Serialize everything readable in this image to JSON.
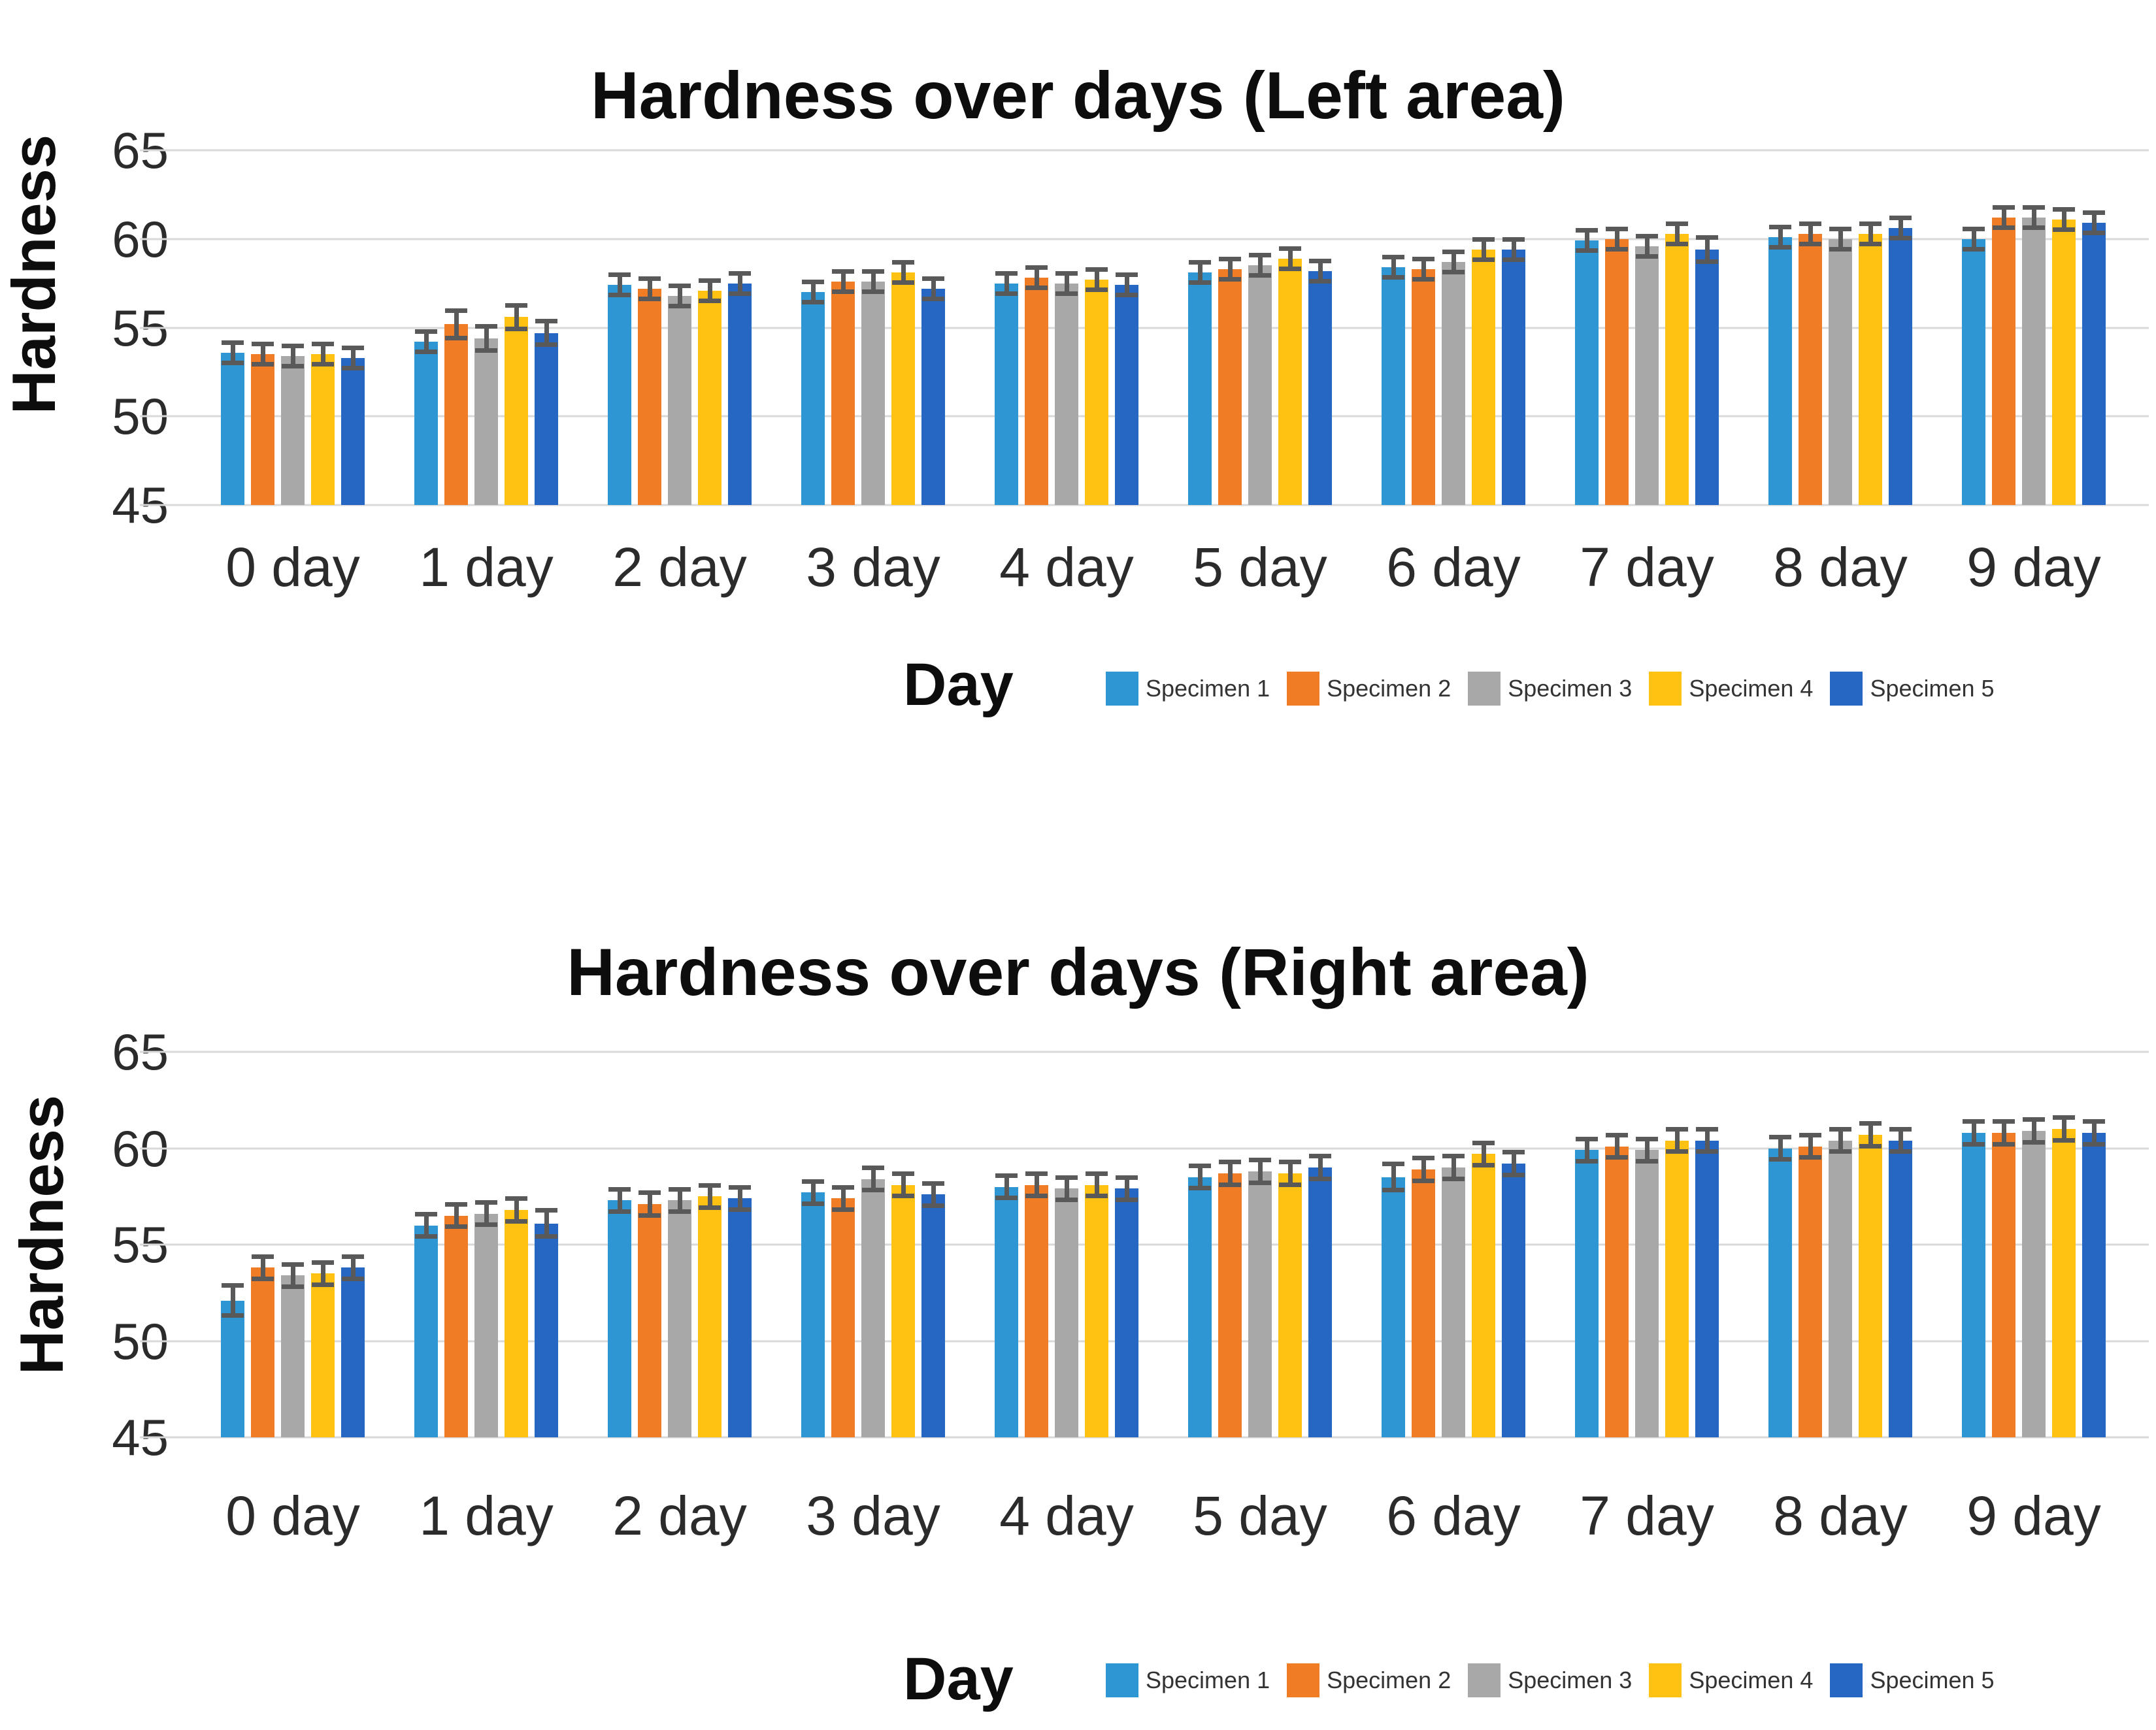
{
  "page": {
    "background": "#ffffff"
  },
  "colors": {
    "error_bar": "#595959",
    "gridline": "#D9D9D9",
    "title_text": "#0d0d0d",
    "axis_text": "#2b2b2b"
  },
  "chart_data": [
    {
      "type": "bar",
      "title": "Hardness over days (Left area)",
      "xlabel": "Day",
      "ylabel": "Hardness",
      "ylim": [
        45,
        65
      ],
      "yticks": [
        65,
        60,
        55,
        50,
        45
      ],
      "grid": true,
      "legend_position": "bottom-right",
      "error_bars": true,
      "categories": [
        "0 day",
        "1 day",
        "2 day",
        "3 day",
        "4 day",
        "5 day",
        "6 day",
        "7 day",
        "8 day",
        "9 day"
      ],
      "series": [
        {
          "name": "Specimen 1",
          "color": "#2E96D3",
          "values": [
            53.6,
            54.2,
            57.4,
            57.0,
            57.5,
            58.1,
            58.4,
            59.9,
            60.1,
            60.0
          ],
          "errors": [
            0.7,
            0.7,
            0.7,
            0.7,
            0.7,
            0.7,
            0.7,
            0.7,
            0.7,
            0.7
          ]
        },
        {
          "name": "Specimen 2",
          "color": "#F07D26",
          "values": [
            53.5,
            55.2,
            57.2,
            57.6,
            57.8,
            58.3,
            58.3,
            60.0,
            60.3,
            61.2
          ],
          "errors": [
            0.7,
            0.9,
            0.7,
            0.7,
            0.7,
            0.7,
            0.7,
            0.7,
            0.7,
            0.7
          ]
        },
        {
          "name": "Specimen 3",
          "color": "#A8A8A8",
          "values": [
            53.4,
            54.4,
            56.8,
            57.6,
            57.5,
            58.5,
            58.7,
            59.6,
            60.0,
            61.2
          ],
          "errors": [
            0.7,
            0.8,
            0.7,
            0.7,
            0.7,
            0.7,
            0.7,
            0.7,
            0.7,
            0.7
          ]
        },
        {
          "name": "Specimen 4",
          "color": "#FFC213",
          "values": [
            53.5,
            55.6,
            57.1,
            58.1,
            57.7,
            58.9,
            59.4,
            60.3,
            60.3,
            61.1
          ],
          "errors": [
            0.7,
            0.8,
            0.7,
            0.7,
            0.7,
            0.7,
            0.7,
            0.7,
            0.7,
            0.7
          ]
        },
        {
          "name": "Specimen 5",
          "color": "#2767C4",
          "values": [
            53.3,
            54.7,
            57.5,
            57.2,
            57.4,
            58.2,
            59.4,
            59.4,
            60.6,
            60.9
          ],
          "errors": [
            0.7,
            0.8,
            0.7,
            0.7,
            0.7,
            0.7,
            0.7,
            0.8,
            0.7,
            0.7
          ]
        }
      ]
    },
    {
      "type": "bar",
      "title": "Hardness over days (Right area)",
      "xlabel": "Day",
      "ylabel": "Hardness",
      "ylim": [
        45,
        65
      ],
      "yticks": [
        65,
        60,
        55,
        50,
        45
      ],
      "grid": true,
      "legend_position": "bottom-right",
      "error_bars": true,
      "categories": [
        "0 day",
        "1 day",
        "2 day",
        "3 day",
        "4 day",
        "5 day",
        "6 day",
        "7 day",
        "8 day",
        "9 day"
      ],
      "series": [
        {
          "name": "Specimen 1",
          "color": "#2E96D3",
          "values": [
            52.1,
            56.0,
            57.3,
            57.7,
            58.0,
            58.5,
            58.5,
            59.9,
            60.0,
            60.8
          ],
          "errors": [
            0.9,
            0.7,
            0.7,
            0.7,
            0.7,
            0.7,
            0.8,
            0.7,
            0.7,
            0.7
          ]
        },
        {
          "name": "Specimen 2",
          "color": "#F07D26",
          "values": [
            53.8,
            56.5,
            57.1,
            57.4,
            58.1,
            58.7,
            58.9,
            60.1,
            60.1,
            60.8
          ],
          "errors": [
            0.7,
            0.7,
            0.7,
            0.7,
            0.7,
            0.7,
            0.7,
            0.7,
            0.7,
            0.7
          ]
        },
        {
          "name": "Specimen 3",
          "color": "#A8A8A8",
          "values": [
            53.4,
            56.6,
            57.3,
            58.4,
            57.9,
            58.8,
            59.0,
            59.9,
            60.4,
            60.9
          ],
          "errors": [
            0.7,
            0.7,
            0.7,
            0.7,
            0.7,
            0.7,
            0.7,
            0.7,
            0.7,
            0.7
          ]
        },
        {
          "name": "Specimen 4",
          "color": "#FFC213",
          "values": [
            53.5,
            56.8,
            57.5,
            58.1,
            58.1,
            58.7,
            59.7,
            60.4,
            60.7,
            61.0
          ],
          "errors": [
            0.7,
            0.7,
            0.7,
            0.7,
            0.7,
            0.7,
            0.7,
            0.7,
            0.7,
            0.7
          ]
        },
        {
          "name": "Specimen 5",
          "color": "#2767C4",
          "values": [
            53.8,
            56.1,
            57.4,
            57.6,
            57.9,
            59.0,
            59.2,
            60.4,
            60.4,
            60.8
          ],
          "errors": [
            0.7,
            0.8,
            0.7,
            0.7,
            0.7,
            0.7,
            0.7,
            0.7,
            0.7,
            0.7
          ]
        }
      ]
    }
  ]
}
